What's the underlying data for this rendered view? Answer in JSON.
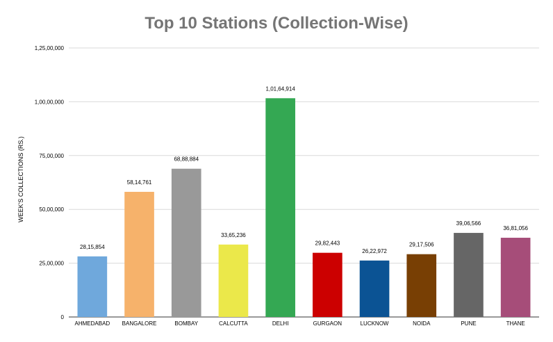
{
  "chart_data": {
    "type": "bar",
    "title": "Top 10 Stations (Collection-Wise)",
    "xlabel": "",
    "ylabel": "WEEK'S COLLECTIONS (RS.)",
    "ylim": [
      0,
      12500000
    ],
    "grid": true,
    "legend": "none",
    "y_ticks": [
      {
        "value": 0,
        "label": "0"
      },
      {
        "value": 2500000,
        "label": "25,00,000"
      },
      {
        "value": 5000000,
        "label": "50,00,000"
      },
      {
        "value": 7500000,
        "label": "75,00,000"
      },
      {
        "value": 10000000,
        "label": "1,00,00,000"
      },
      {
        "value": 12500000,
        "label": "1,25,00,000"
      }
    ],
    "categories": [
      "AHMEDABAD",
      "BANGALORE",
      "BOMBAY",
      "CALCUTTA",
      "DELHI",
      "GURGAON",
      "LUCKNOW",
      "NOIDA",
      "PUNE",
      "THANE"
    ],
    "values": [
      2815854,
      5814761,
      6888884,
      3365236,
      10164914,
      2982443,
      2622972,
      2917506,
      3906566,
      3681056
    ],
    "data_labels": [
      "28,15,854",
      "58,14,761",
      "68,88,884",
      "33,65,236",
      "1,01,64,914",
      "29,82,443",
      "26,22,972",
      "29,17,506",
      "39,06,566",
      "36,81,056"
    ],
    "colors": [
      "#6fa8dc",
      "#f6b26b",
      "#999999",
      "#ebe84a",
      "#34a853",
      "#cc0000",
      "#0b5394",
      "#783f04",
      "#666666",
      "#a64d79"
    ]
  }
}
